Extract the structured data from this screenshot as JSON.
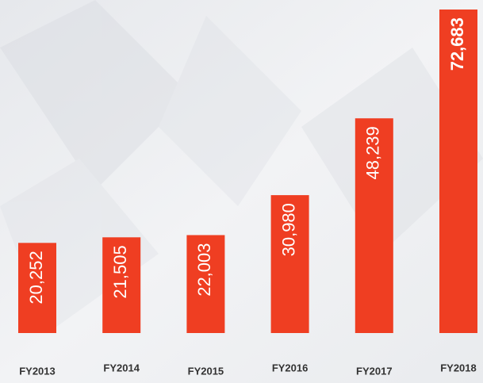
{
  "chart_data": {
    "type": "bar",
    "categories": [
      "FY2013",
      "FY2014",
      "FY2015",
      "FY2016",
      "FY2017",
      "FY2018"
    ],
    "values": [
      20252,
      21505,
      22003,
      30980,
      48239,
      72683
    ],
    "value_labels": [
      "20,252",
      "21,505",
      "22,003",
      "30,980",
      "48,239",
      "72,683"
    ],
    "color": "#ef3e22"
  }
}
